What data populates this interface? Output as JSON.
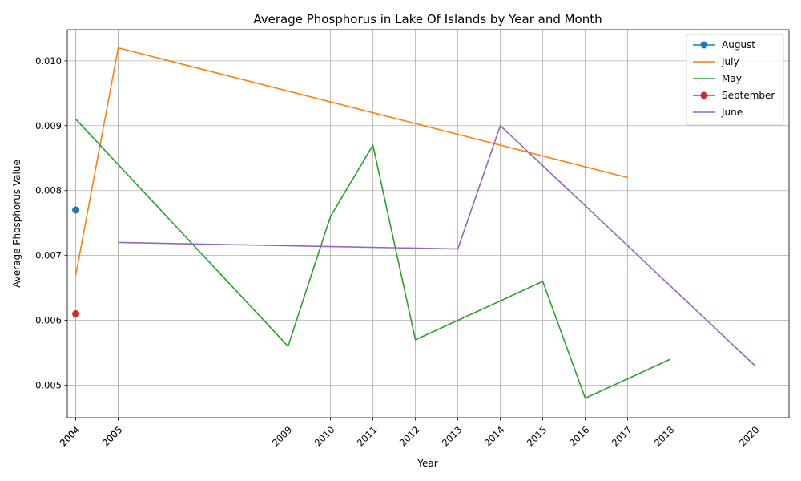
{
  "chart_data": {
    "type": "line",
    "title": "Average Phosphorus in Lake Of Islands by Year and Month",
    "xlabel": "Year",
    "ylabel": "Average Phosphorus Value",
    "xlim": [
      2003.8,
      2020.8
    ],
    "ylim": [
      0.0045,
      0.01048
    ],
    "x_ticks": [
      "2004",
      "2004",
      "2005",
      "2005",
      "2009",
      "2010",
      "2011",
      "2012",
      "2013",
      "2014",
      "2015",
      "2016",
      "2017",
      "2018",
      "2020"
    ],
    "y_ticks": [
      "0.005",
      "0.006",
      "0.007",
      "0.008",
      "0.009",
      "0.010"
    ],
    "grid": true,
    "legend_position": "top-right",
    "series": [
      {
        "name": "August",
        "color": "#1f77b4",
        "marker": "circle",
        "points": [
          [
            2004,
            0.0077
          ]
        ]
      },
      {
        "name": "July",
        "color": "#ff7f0e",
        "marker": "none",
        "points": [
          [
            2004,
            0.0067
          ],
          [
            2005,
            0.0102
          ],
          [
            2017,
            0.0082
          ]
        ]
      },
      {
        "name": "May",
        "color": "#2ca02c",
        "marker": "none",
        "points": [
          [
            2004,
            0.0091
          ],
          [
            2009,
            0.0056
          ],
          [
            2010,
            0.0076
          ],
          [
            2011,
            0.0087
          ],
          [
            2012,
            0.0057
          ],
          [
            2015,
            0.0066
          ],
          [
            2016,
            0.0048
          ],
          [
            2018,
            0.0054
          ]
        ]
      },
      {
        "name": "September",
        "color": "#d62728",
        "marker": "circle",
        "points": [
          [
            2004,
            0.0061
          ]
        ]
      },
      {
        "name": "June",
        "color": "#9467bd",
        "marker": "none",
        "points": [
          [
            2005,
            0.0072
          ],
          [
            2013,
            0.0071
          ],
          [
            2014,
            0.009
          ],
          [
            2020,
            0.0053
          ]
        ]
      }
    ]
  }
}
